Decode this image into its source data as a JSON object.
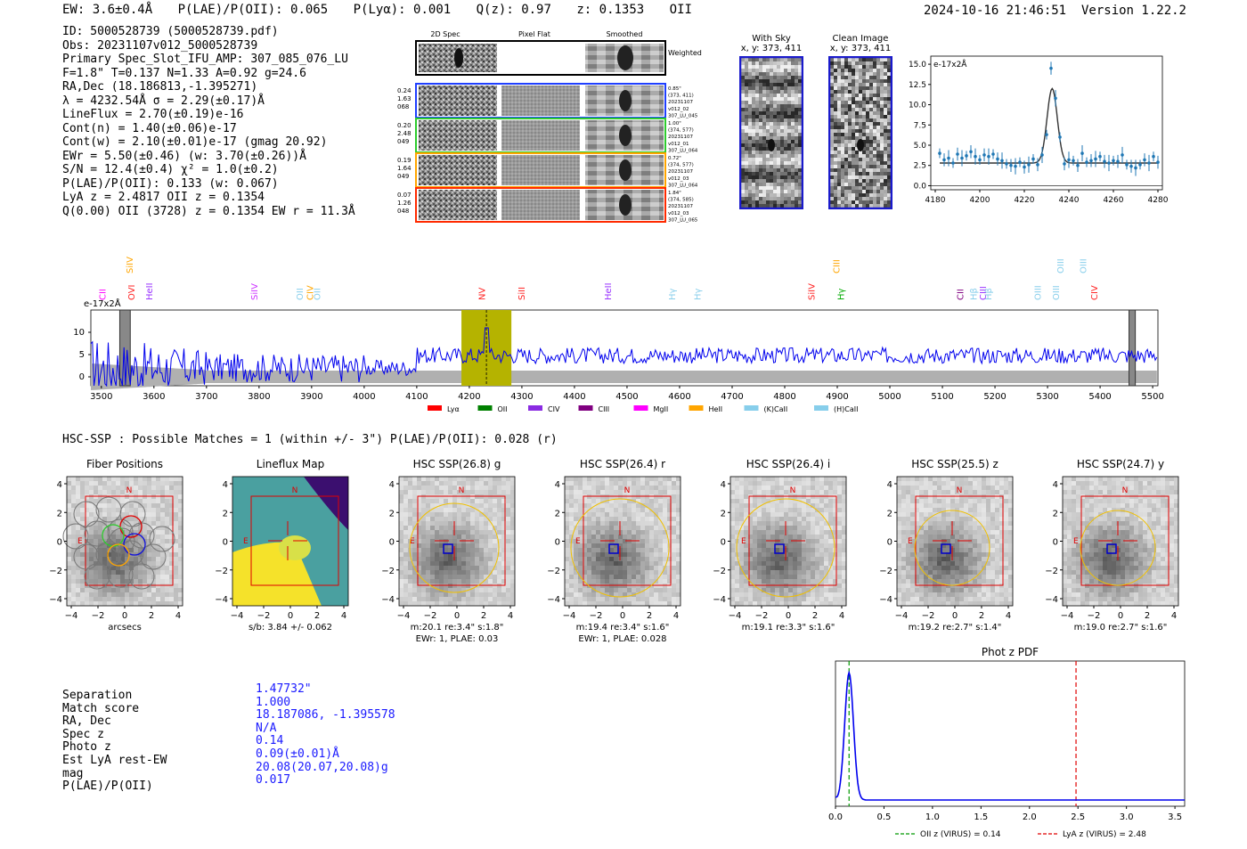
{
  "header": {
    "ew": "EW: 3.6±0.4Å",
    "plae": "P(LAE)/P(OII): 0.065",
    "plya": "P(Lyα): 0.001",
    "qz": "Q(z): 0.97",
    "z": "z: 0.1353",
    "line": "OII",
    "timestamp": "2024-10-16 21:46:51",
    "version": "Version 1.22.2"
  },
  "info": [
    "ID: 5000528739 (5000528739.pdf)",
    "Obs: 20231107v012_5000528739",
    "Primary Spec_Slot_IFU_AMP: 307_085_076_LU",
    "F=1.8\"  T=0.137  N=1.33  A=0.92  g=24.6",
    "RA,Dec (18.186813,-1.395271)",
    "λ = 4232.54Å   σ = 2.29(±0.17)Å",
    "LineFlux = 2.70(±0.19)e-16",
    "Cont(n) = 1.40(±0.06)e-17",
    "Cont(w) = 2.10(±0.01)e-17 (gmag 20.92)",
    "EWr = 5.50(±0.46) (w: 3.70(±0.26))Å",
    "S/N = 12.4(±0.4)  χ² = 1.0(±0.2)",
    "P(LAE)/P(OII): 0.133 (w: 0.067)",
    "LyA z = 2.4817  OII z = 0.1354",
    "Q(0.00) OII (3728) z = 0.1354  EW r = 11.3Å"
  ],
  "cutouts": {
    "headers": [
      "2D Spec",
      "Pixel Flat",
      "Smoothed"
    ],
    "weighted_label": "Weighted Sum",
    "rows": [
      {
        "left": [
          "0.24",
          "1.63",
          "068"
        ],
        "right": [
          "0.85\"",
          "(373, 411)",
          "20231107",
          "v012_02",
          "307_LU_045"
        ],
        "color": "#1f3fff"
      },
      {
        "left": [
          "0.20",
          "2.48",
          "049"
        ],
        "right": [
          "1.00\"",
          "(374, 577)",
          "20231107",
          "v012_01",
          "307_LU_064"
        ],
        "color": "#2ecc2e"
      },
      {
        "left": [
          "0.19",
          "1.64",
          "049"
        ],
        "right": [
          "0.72\"",
          "(374, 577)",
          "20231107",
          "v012_03",
          "307_LU_064"
        ],
        "color": "#ffa500"
      },
      {
        "left": [
          "0.07",
          "1.26",
          "048"
        ],
        "right": [
          "1.84\"",
          "(374, 585)",
          "20231107",
          "v012_03",
          "307_LU_065"
        ],
        "color": "#ff2a00"
      }
    ]
  },
  "sky_panels": {
    "with_sky": "With Sky",
    "with_sky_coord": "x, y: 373, 411",
    "clean": "Clean Image",
    "clean_coord": "x, y: 373, 411"
  },
  "chart_data": [
    {
      "type": "line",
      "title": "",
      "ylabel": "e-17x2Å",
      "xlabel": "",
      "x": [
        4182,
        4184,
        4186,
        4188,
        4190,
        4192,
        4194,
        4196,
        4198,
        4200,
        4202,
        4204,
        4206,
        4208,
        4210,
        4212,
        4214,
        4216,
        4218,
        4220,
        4222,
        4224,
        4226,
        4228,
        4230,
        4232,
        4234,
        4236,
        4238,
        4240,
        4242,
        4244,
        4246,
        4248,
        4250,
        4252,
        4254,
        4256,
        4258,
        4260,
        4262,
        4264,
        4266,
        4268,
        4270,
        4272,
        4274,
        4276,
        4278,
        4280
      ],
      "values": [
        4.0,
        3.2,
        3.4,
        2.8,
        3.9,
        3.4,
        3.7,
        4.2,
        3.6,
        3.2,
        3.8,
        3.6,
        3.9,
        3.3,
        3.1,
        2.7,
        2.5,
        2.4,
        2.9,
        2.3,
        2.6,
        3.3,
        2.6,
        3.8,
        6.3,
        14.5,
        10.8,
        6.0,
        2.7,
        3.2,
        3.1,
        2.5,
        4.0,
        2.9,
        3.1,
        3.3,
        3.6,
        3.0,
        2.8,
        3.1,
        3.0,
        3.8,
        2.6,
        2.4,
        2.2,
        2.6,
        3.2,
        2.8,
        3.6,
        2.9
      ],
      "fit": {
        "continuum": 2.8,
        "peak": 12.0,
        "center": 4232.5,
        "sigma": 2.3
      },
      "xlim": [
        4178,
        4282
      ],
      "ylim": [
        -0.5,
        16
      ],
      "xticks": [
        4180,
        4200,
        4220,
        4240,
        4260,
        4280
      ],
      "yticks": [
        0.0,
        2.5,
        5.0,
        7.5,
        10.0,
        12.5,
        15.0
      ]
    },
    {
      "type": "line",
      "title": "",
      "ylabel": "e-17x2Å",
      "xlim": [
        3480,
        5510
      ],
      "ylim": [
        -2,
        15
      ],
      "xticks": [
        3500,
        3600,
        3700,
        3800,
        3900,
        4000,
        4100,
        4200,
        4300,
        4400,
        4500,
        4600,
        4700,
        4800,
        4900,
        5000,
        5100,
        5200,
        5300,
        5400,
        5500
      ],
      "yticks": [
        0,
        5,
        10
      ],
      "highlight_range": [
        4185,
        4280
      ],
      "marker_x": 4232.5,
      "line_labels": [
        {
          "name": "CII",
          "x": 3508,
          "color": "#ff00ff",
          "row": 1
        },
        {
          "name": "SiIV",
          "x": 3560,
          "color": "#ffa500",
          "row": 0
        },
        {
          "name": "OVI",
          "x": 3563,
          "color": "#ff2020",
          "row": 1
        },
        {
          "name": "HeII",
          "x": 3597,
          "color": "#9933ff",
          "row": 1
        },
        {
          "name": "SiIV",
          "x": 3797,
          "color": "#cc33ff",
          "row": 1
        },
        {
          "name": "OII",
          "x": 3883,
          "color": "#87ceeb",
          "row": 1
        },
        {
          "name": "CIV",
          "x": 3903,
          "color": "#ffa500",
          "row": 1
        },
        {
          "name": "OII",
          "x": 3916,
          "color": "#87ceeb",
          "row": 1
        },
        {
          "name": "NV",
          "x": 4230,
          "color": "#ff2020",
          "row": 1
        },
        {
          "name": "SiII",
          "x": 4305,
          "color": "#ff2020",
          "row": 1
        },
        {
          "name": "HeII",
          "x": 4470,
          "color": "#9933ff",
          "row": 1
        },
        {
          "name": "Hγ",
          "x": 4592,
          "color": "#87ceeb",
          "row": 1
        },
        {
          "name": "Hγ",
          "x": 4640,
          "color": "#87ceeb",
          "row": 1
        },
        {
          "name": "SiIV",
          "x": 4857,
          "color": "#ff2020",
          "row": 1
        },
        {
          "name": "CIII",
          "x": 4904,
          "color": "#ffa500",
          "row": 0
        },
        {
          "name": "Hγ",
          "x": 4913,
          "color": "#00aa00",
          "row": 1
        },
        {
          "name": "CII",
          "x": 5140,
          "color": "#800080",
          "row": 1
        },
        {
          "name": "Hβ",
          "x": 5165,
          "color": "#87ceeb",
          "row": 1
        },
        {
          "name": "CIII",
          "x": 5183,
          "color": "#9933ff",
          "row": 1
        },
        {
          "name": "Hβ",
          "x": 5193,
          "color": "#87ceeb",
          "row": 1
        },
        {
          "name": "OIII",
          "x": 5287,
          "color": "#87ceeb",
          "row": 1
        },
        {
          "name": "OIII",
          "x": 5330,
          "color": "#87ceeb",
          "row": 0
        },
        {
          "name": "OIII",
          "x": 5322,
          "color": "#87ceeb",
          "row": 1
        },
        {
          "name": "OIII",
          "x": 5374,
          "color": "#87ceeb",
          "row": 0
        },
        {
          "name": "CIV",
          "x": 5395,
          "color": "#ff2020",
          "row": 1
        }
      ],
      "legend": [
        {
          "name": "Lyα",
          "color": "#ff0000"
        },
        {
          "name": "OII",
          "color": "#008000"
        },
        {
          "name": "CIV",
          "color": "#8a2be2"
        },
        {
          "name": "CIII",
          "color": "#800080"
        },
        {
          "name": "MgII",
          "color": "#ff00ff"
        },
        {
          "name": "HeII",
          "color": "#ffa500"
        },
        {
          "name": "(K)CaII",
          "color": "#87ceeb"
        },
        {
          "name": "(H)CaII",
          "color": "#87ceeb"
        }
      ]
    },
    {
      "type": "line",
      "title": "Phot z PDF",
      "xlim": [
        0.0,
        3.6
      ],
      "xticks": [
        0.0,
        0.5,
        1.0,
        1.5,
        2.0,
        2.5,
        3.0,
        3.5
      ],
      "peak_z": 0.14,
      "oii_z": 0.14,
      "lya_z": 2.48,
      "legend": [
        "OII z (VIRUS) = 0.14",
        "LyA z (VIRUS) = 2.48"
      ]
    }
  ],
  "hsc": {
    "summary": "HSC-SSP : Possible Matches = 1 (within +/- 3\")  P(LAE)/P(OII): 0.028 (r)",
    "panels": [
      {
        "title": "Fiber Positions",
        "caption1": "arcsecs",
        "caption2": ""
      },
      {
        "title": "Lineflux Map",
        "caption1": "s/b: 3.84 +/- 0.062",
        "caption2": ""
      },
      {
        "title": "HSC SSP(26.8) g",
        "caption1": "m:20.1  re:3.4\"  s:1.8\"",
        "caption2": "EWr: 1, PLAE: 0.03"
      },
      {
        "title": "HSC SSP(26.4) r",
        "caption1": "m:19.4  re:3.4\"  s:1.6\"",
        "caption2": "EWr: 1, PLAE: 0.028"
      },
      {
        "title": "HSC SSP(26.4) i",
        "caption1": "m:19.1  re:3.3\"  s:1.6\"",
        "caption2": ""
      },
      {
        "title": "HSC SSP(25.5) z",
        "caption1": "m:19.2  re:2.7\"  s:1.4\"",
        "caption2": ""
      },
      {
        "title": "HSC SSP(24.7) y",
        "caption1": "m:19.0  re:2.7\"  s:1.6\"",
        "caption2": ""
      }
    ],
    "axis_ticks": [
      "-4",
      "-2",
      "0",
      "2",
      "4"
    ],
    "n_label": "N",
    "e_label": "E"
  },
  "match": {
    "labels": [
      "Separation",
      "Match score",
      "RA, Dec",
      "Spec z",
      "Photo z",
      "Est LyA rest-EW",
      "mag",
      "P(LAE)/P(OII)"
    ],
    "values": [
      "1.47732\"",
      "1.000",
      "18.187086, -1.395578",
      "N/A",
      "0.14",
      "0.09(±0.01)Å",
      "20.08(20.07,20.08)g",
      "0.017"
    ]
  },
  "colors": {
    "spectrum": "#0000ee",
    "errband": "#b0b0b0",
    "highlight": "#b5b300",
    "fitline": "#333333",
    "points": "#1f77b4",
    "red_box": "#e00000",
    "pdf_line": "#0000ee"
  }
}
